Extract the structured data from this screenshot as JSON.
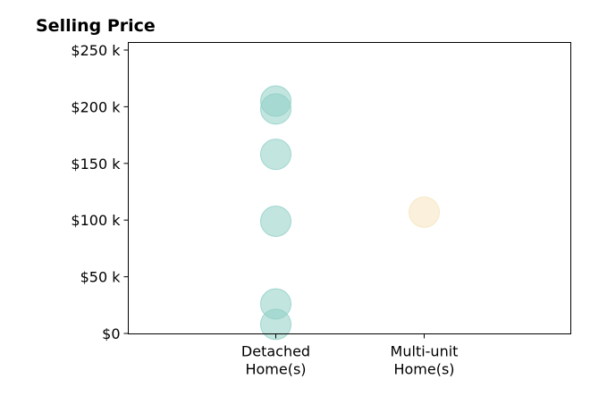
{
  "chart_data": {
    "type": "scatter",
    "title": "Selling Price",
    "xlabel": "",
    "ylabel": "",
    "ylim": [
      0,
      250000
    ],
    "y_ticks": [
      0,
      50000,
      100000,
      150000,
      200000,
      250000
    ],
    "y_tick_labels": [
      "$0",
      "$50 k",
      "$100 k",
      "$150 k",
      "$200 k",
      "$250 k"
    ],
    "categories": [
      [
        "Detached",
        "Home(s)"
      ],
      [
        "Multi-unit",
        "Home(s)"
      ]
    ],
    "grid": false,
    "series": [
      {
        "category_index": 0,
        "color": "#8fcfc6",
        "values": [
          205000,
          198000,
          158000,
          99000,
          26000,
          8000
        ]
      },
      {
        "category_index": 1,
        "color": "#f6e3bd",
        "values": [
          107000
        ]
      }
    ]
  }
}
